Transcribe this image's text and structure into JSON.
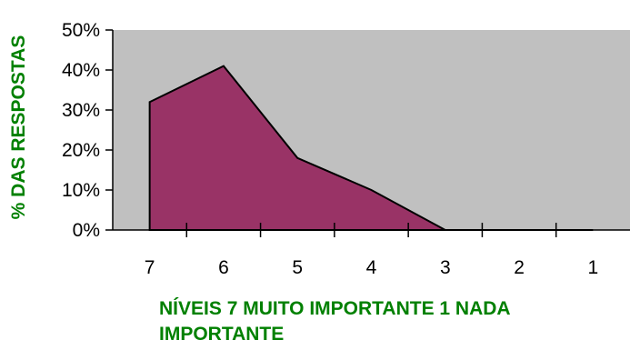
{
  "chart_data": {
    "type": "area",
    "categories": [
      "7",
      "6",
      "5",
      "4",
      "3",
      "2",
      "1"
    ],
    "series": [
      {
        "values": [
          0.32,
          0.41,
          0.18,
          0.1,
          0.0,
          0.0,
          0.0
        ]
      }
    ],
    "ylabel": "% DAS RESPOSTAS",
    "xlabel": "NÍVEIS 7 MUITO IMPORTANTE 1 NADA IMPORTANTE",
    "yticks": [
      "0%",
      "10%",
      "20%",
      "30%",
      "40%",
      "50%"
    ],
    "ylim": [
      0,
      0.5
    ],
    "grid": false,
    "legend": "none",
    "colors": {
      "area_fill": "#993366",
      "plot_background": "#C0C0C0",
      "axis_title": "#008000",
      "outline": "#000000"
    }
  }
}
